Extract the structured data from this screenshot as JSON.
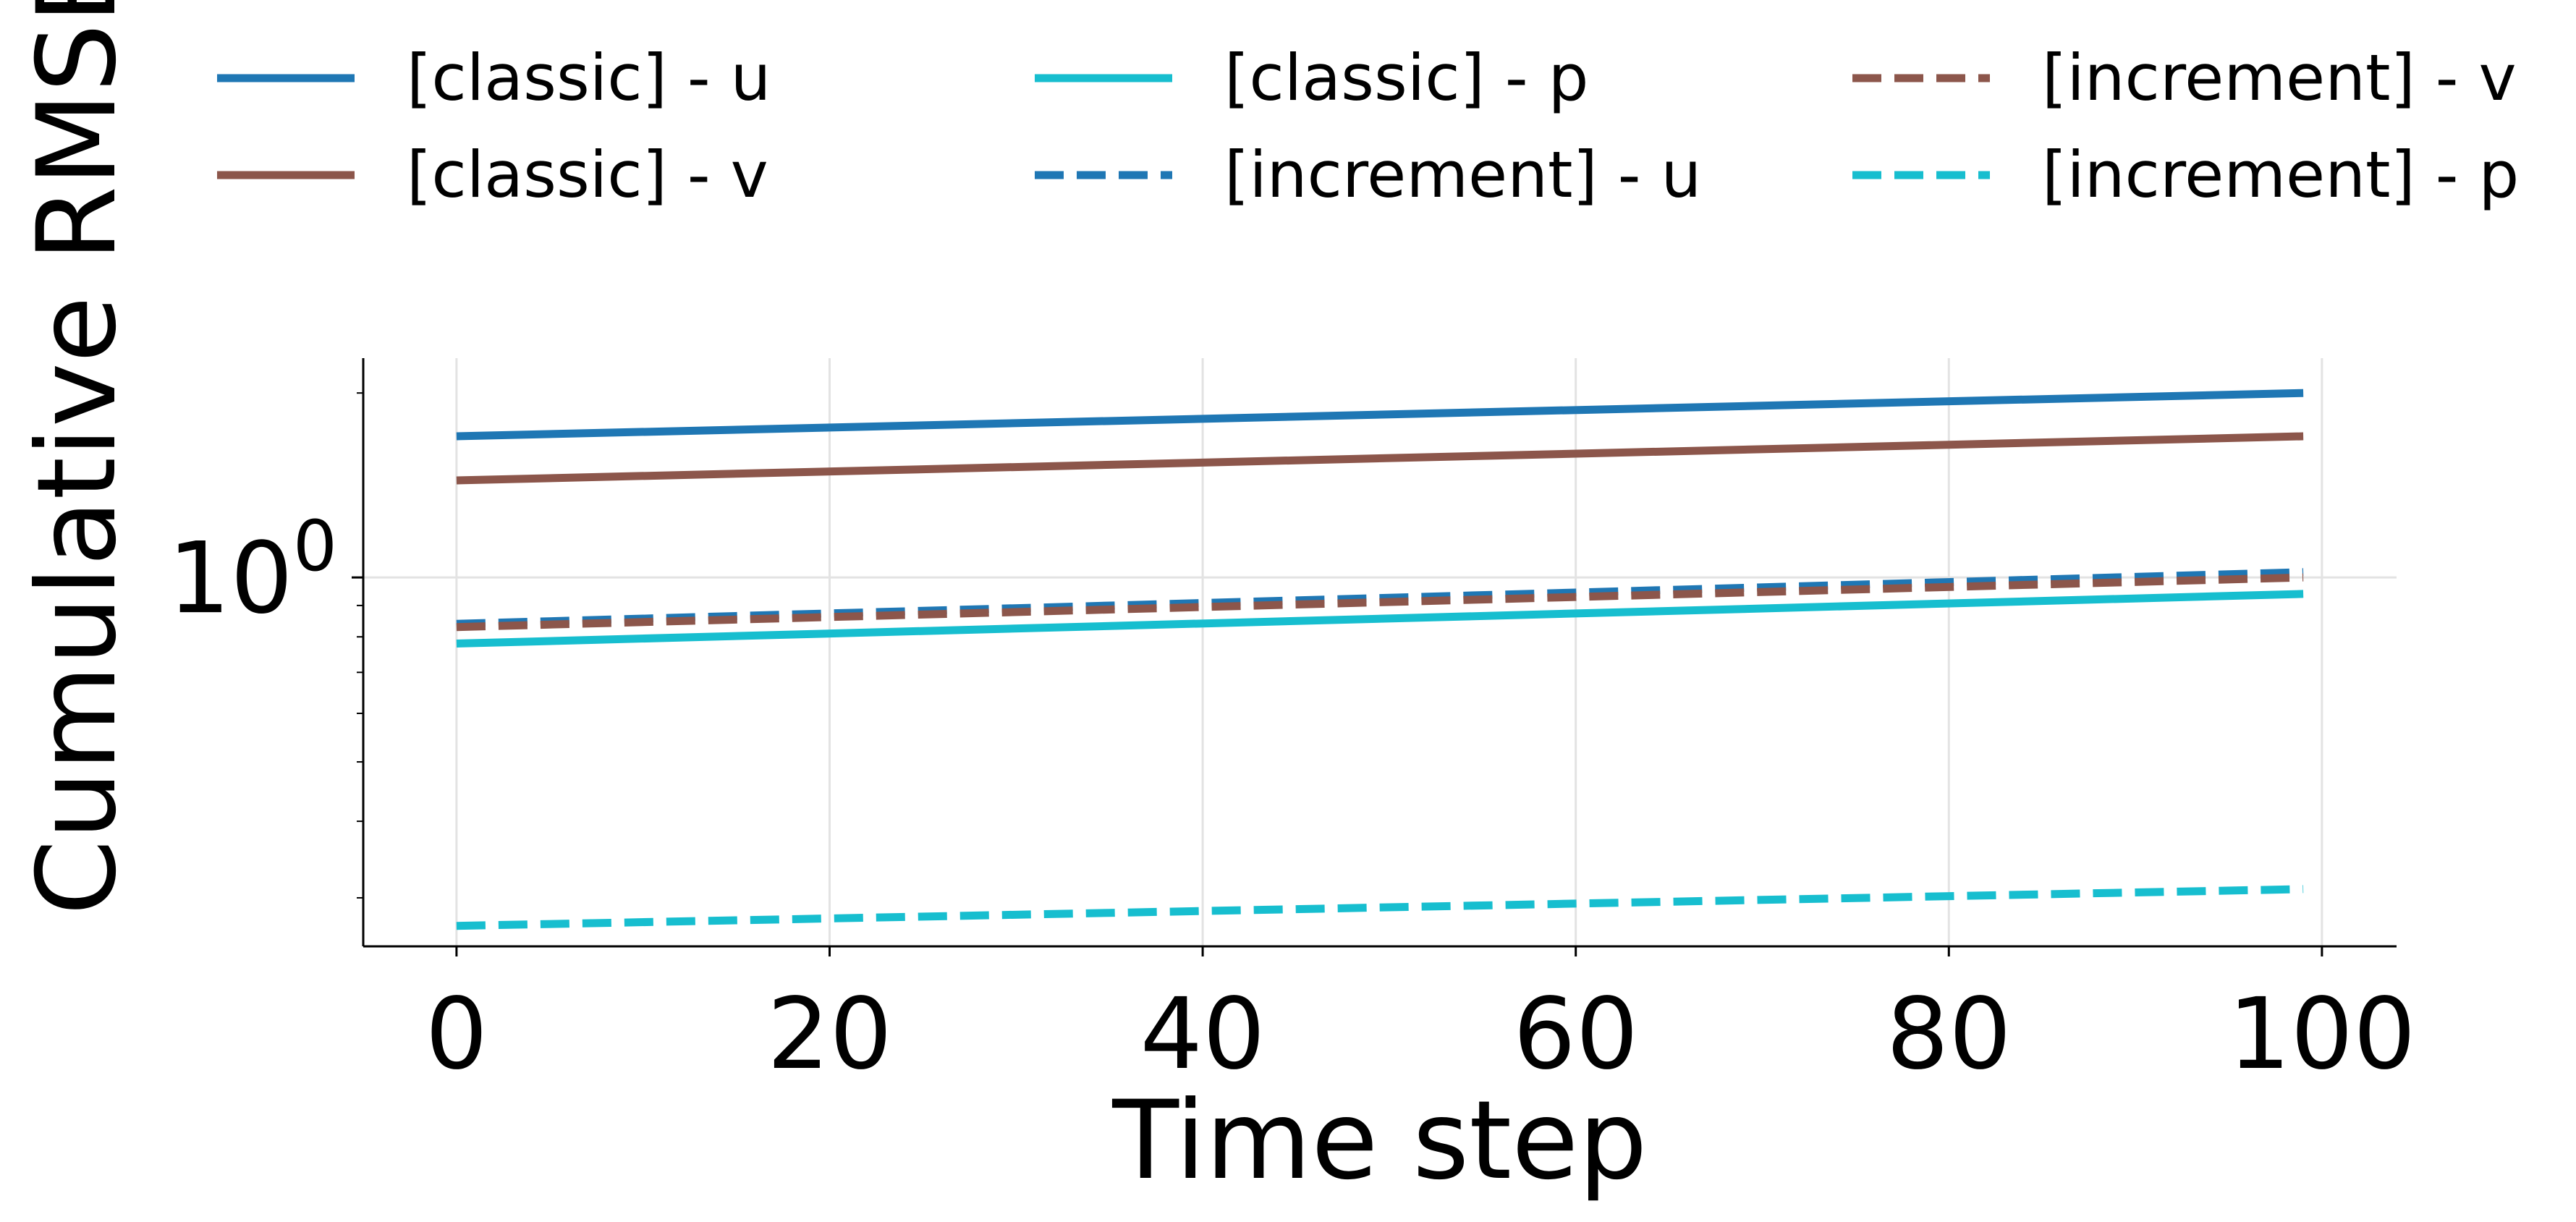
{
  "chart_data": {
    "type": "line",
    "title": "",
    "xlabel": "Time step",
    "ylabel": "Cumulative RMSE",
    "y_scale": "log",
    "xlim": [
      -5,
      104
    ],
    "ylim": [
      0.25,
      2.28
    ],
    "x_ticks": [
      0,
      20,
      40,
      60,
      80,
      100
    ],
    "x_tick_labels": [
      "0",
      "20",
      "40",
      "60",
      "80",
      "100"
    ],
    "y_ticks": [
      1
    ],
    "y_tick_labels": [
      {
        "base": "10",
        "exp": "0"
      }
    ],
    "grid": true,
    "legend_placement": "top, outside, 3 columns",
    "series": [
      {
        "name": "[classic] - u",
        "color": "#1f77b4",
        "dash": "solid",
        "x": [
          0,
          99
        ],
        "y": [
          1.7,
          2.0
        ]
      },
      {
        "name": "[increment] - u",
        "color": "#1f77b4",
        "dash": "dashed",
        "x": [
          0,
          99
        ],
        "y": [
          0.84,
          1.02
        ]
      },
      {
        "name": "[classic] - v",
        "color": "#8c564b",
        "dash": "solid",
        "x": [
          0,
          99
        ],
        "y": [
          1.44,
          1.7
        ]
      },
      {
        "name": "[increment] - v",
        "color": "#8c564b",
        "dash": "dashed",
        "x": [
          0,
          99
        ],
        "y": [
          0.83,
          1.0
        ]
      },
      {
        "name": "[classic] - p",
        "color": "#17becf",
        "dash": "solid",
        "x": [
          0,
          99
        ],
        "y": [
          0.78,
          0.94
        ]
      },
      {
        "name": "[increment] - p",
        "color": "#17becf",
        "dash": "dashed",
        "x": [
          0,
          99
        ],
        "y": [
          0.27,
          0.31
        ]
      }
    ],
    "legend_order": [
      0,
      2,
      4,
      1,
      3,
      5
    ]
  }
}
